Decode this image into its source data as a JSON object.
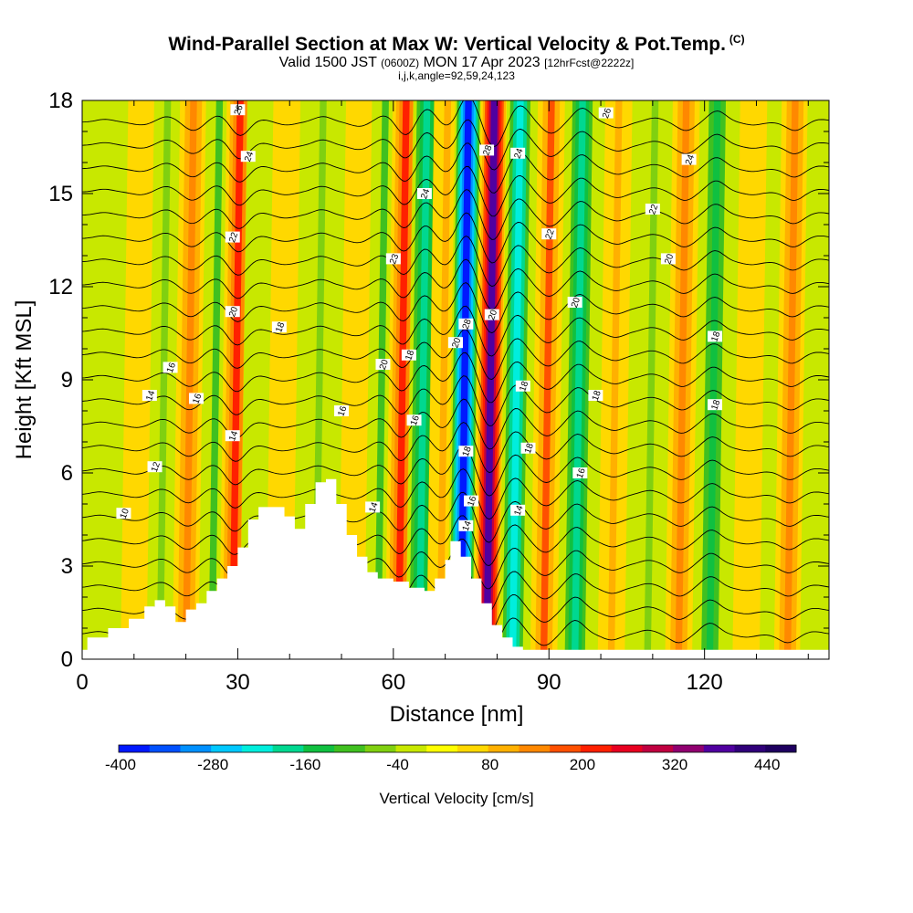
{
  "title": {
    "line1": "Wind-Parallel Section at Max W: Vertical Velocity & Pot.Temp.",
    "copyright": "(C)",
    "line2_a": "Valid 1500 JST",
    "line2_b": "(0600Z)",
    "line2_c": "MON 17 Apr 2023",
    "line2_d": "[12hrFcst@2222z]",
    "line3": "i,j,k,angle=92,59,24,123"
  },
  "chart_data": {
    "type": "heatmap",
    "xlabel": "Distance [nm]",
    "ylabel": "Height [Kft MSL]",
    "xlim": [
      0,
      144
    ],
    "ylim": [
      0,
      18
    ],
    "x_ticks": [
      0,
      30,
      60,
      90,
      120
    ],
    "y_ticks": [
      0,
      3,
      6,
      9,
      12,
      15,
      18
    ],
    "colorbar": {
      "label": "Vertical Velocity [cm/s]",
      "min": -400,
      "max": 480,
      "step": 40,
      "tick_values": [
        -400,
        -280,
        -160,
        -40,
        80,
        200,
        320,
        440
      ],
      "colors": [
        "#0018ff",
        "#0050ff",
        "#0090ff",
        "#00c8ff",
        "#00eedd",
        "#00d890",
        "#10c040",
        "#40c020",
        "#80d010",
        "#c8e800",
        "#ffff00",
        "#ffd800",
        "#ffb000",
        "#ff8800",
        "#ff5000",
        "#ff2000",
        "#e80020",
        "#c00040",
        "#900070",
        "#5000a0",
        "#30007a",
        "#1e0060"
      ]
    },
    "wave_bands": [
      {
        "x": 3,
        "w": -40
      },
      {
        "x": 10,
        "w": 40
      },
      {
        "x": 15,
        "w": -80
      },
      {
        "x": 20,
        "w": 120
      },
      {
        "x": 25,
        "w": -100
      },
      {
        "x": 29,
        "w": 200
      },
      {
        "x": 33,
        "w": -40
      },
      {
        "x": 38,
        "w": 40
      },
      {
        "x": 45,
        "w": -80
      },
      {
        "x": 52,
        "w": 60
      },
      {
        "x": 57,
        "w": -100
      },
      {
        "x": 61,
        "w": 200
      },
      {
        "x": 65,
        "w": -200
      },
      {
        "x": 69,
        "w": 80
      },
      {
        "x": 73,
        "w": -380
      },
      {
        "x": 78,
        "w": 360
      },
      {
        "x": 83,
        "w": -240
      },
      {
        "x": 89,
        "w": 160
      },
      {
        "x": 95,
        "w": -200
      },
      {
        "x": 102,
        "w": 80
      },
      {
        "x": 109,
        "w": -60
      },
      {
        "x": 115,
        "w": 120
      },
      {
        "x": 121,
        "w": -160
      },
      {
        "x": 128,
        "w": 40
      },
      {
        "x": 136,
        "w": 120
      },
      {
        "x": 141,
        "w": -40
      }
    ],
    "terrain": [
      [
        0,
        0.3
      ],
      [
        1,
        0.7
      ],
      [
        5,
        1.0
      ],
      [
        9,
        1.3
      ],
      [
        12,
        1.7
      ],
      [
        14,
        1.9
      ],
      [
        16,
        1.7
      ],
      [
        18,
        1.2
      ],
      [
        20,
        1.6
      ],
      [
        22,
        1.8
      ],
      [
        24,
        2.2
      ],
      [
        26,
        2.6
      ],
      [
        28,
        3.0
      ],
      [
        30,
        3.6
      ],
      [
        32,
        4.5
      ],
      [
        34,
        4.9
      ],
      [
        37,
        4.9
      ],
      [
        39,
        4.6
      ],
      [
        41,
        4.2
      ],
      [
        43,
        5.0
      ],
      [
        45,
        5.7
      ],
      [
        47,
        5.8
      ],
      [
        49,
        5.0
      ],
      [
        51,
        4.0
      ],
      [
        53,
        3.3
      ],
      [
        55,
        2.8
      ],
      [
        57,
        2.6
      ],
      [
        60,
        2.5
      ],
      [
        63,
        2.3
      ],
      [
        66,
        2.2
      ],
      [
        68,
        2.6
      ],
      [
        70,
        3.2
      ],
      [
        71,
        3.8
      ],
      [
        73,
        3.3
      ],
      [
        75,
        2.6
      ],
      [
        77,
        1.8
      ],
      [
        79,
        1.1
      ],
      [
        81,
        0.7
      ],
      [
        83,
        0.4
      ],
      [
        85,
        0.3
      ],
      [
        144,
        0.3
      ]
    ],
    "theta_contours": {
      "levels": [
        10,
        12,
        14,
        16,
        18,
        20,
        22,
        24,
        26
      ],
      "base_heights": [
        4.7,
        6.5,
        8.6,
        10.3,
        11.7,
        13.4,
        15.0,
        16.5,
        17.7
      ],
      "labels": [
        {
          "x": 8,
          "y": 4.7,
          "text": "10"
        },
        {
          "x": 14,
          "y": 6.2,
          "text": "12"
        },
        {
          "x": 13,
          "y": 8.5,
          "text": "14"
        },
        {
          "x": 17,
          "y": 9.4,
          "text": "16"
        },
        {
          "x": 22,
          "y": 8.4,
          "text": "16"
        },
        {
          "x": 29,
          "y": 7.2,
          "text": "14"
        },
        {
          "x": 29,
          "y": 11.2,
          "text": "20"
        },
        {
          "x": 29,
          "y": 13.6,
          "text": "22"
        },
        {
          "x": 32,
          "y": 16.2,
          "text": "24"
        },
        {
          "x": 30,
          "y": 17.7,
          "text": "26"
        },
        {
          "x": 38,
          "y": 10.7,
          "text": "18"
        },
        {
          "x": 50,
          "y": 8.0,
          "text": "16"
        },
        {
          "x": 56,
          "y": 4.9,
          "text": "14"
        },
        {
          "x": 58,
          "y": 9.5,
          "text": "20"
        },
        {
          "x": 60,
          "y": 12.9,
          "text": "23"
        },
        {
          "x": 63,
          "y": 9.8,
          "text": "18"
        },
        {
          "x": 64,
          "y": 7.7,
          "text": "16"
        },
        {
          "x": 66,
          "y": 15.0,
          "text": "24"
        },
        {
          "x": 72,
          "y": 10.2,
          "text": "20"
        },
        {
          "x": 74,
          "y": 10.8,
          "text": "28"
        },
        {
          "x": 74,
          "y": 6.7,
          "text": "18"
        },
        {
          "x": 75,
          "y": 5.1,
          "text": "16"
        },
        {
          "x": 74,
          "y": 4.3,
          "text": "14"
        },
        {
          "x": 78,
          "y": 16.4,
          "text": "28"
        },
        {
          "x": 79,
          "y": 11.1,
          "text": "20"
        },
        {
          "x": 84,
          "y": 16.3,
          "text": "24"
        },
        {
          "x": 85,
          "y": 8.8,
          "text": "18"
        },
        {
          "x": 86,
          "y": 6.8,
          "text": "18"
        },
        {
          "x": 84,
          "y": 4.8,
          "text": "14"
        },
        {
          "x": 90,
          "y": 13.7,
          "text": "22"
        },
        {
          "x": 95,
          "y": 11.5,
          "text": "20"
        },
        {
          "x": 99,
          "y": 8.5,
          "text": "18"
        },
        {
          "x": 96,
          "y": 6.0,
          "text": "16"
        },
        {
          "x": 101,
          "y": 17.6,
          "text": "26"
        },
        {
          "x": 110,
          "y": 14.5,
          "text": "22"
        },
        {
          "x": 113,
          "y": 12.9,
          "text": "20"
        },
        {
          "x": 117,
          "y": 16.1,
          "text": "24"
        },
        {
          "x": 122,
          "y": 10.4,
          "text": "18"
        },
        {
          "x": 122,
          "y": 8.2,
          "text": "18"
        }
      ]
    }
  }
}
